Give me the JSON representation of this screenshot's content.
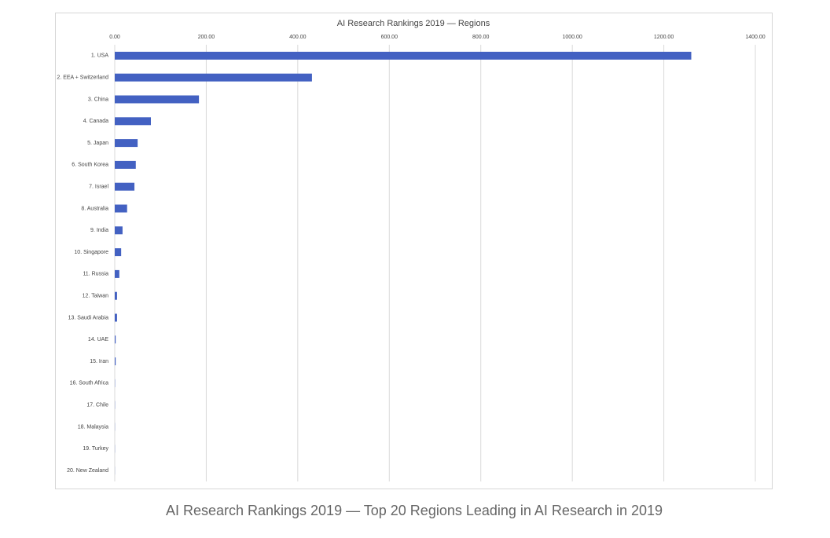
{
  "chart_data": {
    "type": "bar",
    "orientation": "horizontal",
    "title": "AI Research Rankings 2019 — Regions",
    "categories": [
      "1. USA",
      "2. EEA + Switzerland",
      "3. China",
      "4. Canada",
      "5. Japan",
      "6. South Korea",
      "7. Israel",
      "8. Australia",
      "9. India",
      "10. Singapore",
      "11. Russia",
      "12. Taiwan",
      "13. Saudi Arabia",
      "14. UAE",
      "15. Iran",
      "16. South Africa",
      "17. Chile",
      "18. Malaysia",
      "19. Turkey",
      "20. New Zealand"
    ],
    "values": [
      1260,
      431,
      184,
      79,
      50,
      46,
      43,
      27,
      17,
      14,
      10,
      5,
      5,
      2,
      2,
      0.5,
      0.4,
      0.3,
      0.3,
      0.2
    ],
    "color": "#4361c2",
    "xlim": [
      0,
      1400
    ],
    "xticks": [
      {
        "value": 0,
        "label": "0.00"
      },
      {
        "value": 200,
        "label": "200.00"
      },
      {
        "value": 400,
        "label": "400.00"
      },
      {
        "value": 600,
        "label": "600.00"
      },
      {
        "value": 800,
        "label": "800.00"
      },
      {
        "value": 1000,
        "label": "1000.00"
      },
      {
        "value": 1200,
        "label": "1200.00"
      },
      {
        "value": 1400,
        "label": "1400.00"
      }
    ],
    "grid": true
  },
  "caption": "AI Research Rankings 2019 — Top 20 Regions Leading in AI Research in 2019"
}
